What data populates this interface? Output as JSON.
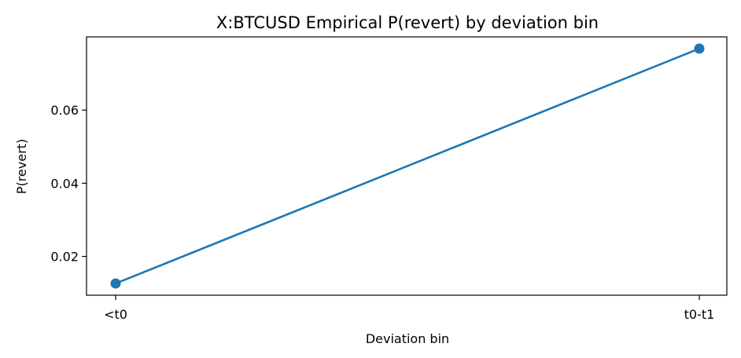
{
  "chart_data": {
    "type": "line",
    "title": "X:BTCUSD Empirical P(revert) by deviation bin",
    "xlabel": "Deviation bin",
    "ylabel": "P(revert)",
    "categories": [
      "<t0",
      "t0-t1"
    ],
    "series": [
      {
        "values": [
          0.0126,
          0.0768
        ],
        "color": "#1f77b4",
        "marker": "circle"
      }
    ],
    "ylim": [
      0.0094,
      0.08
    ],
    "yticks": [
      {
        "value": 0.02,
        "label": "0.02"
      },
      {
        "value": 0.04,
        "label": "0.04"
      },
      {
        "value": 0.06,
        "label": "0.06"
      }
    ],
    "grid": false,
    "legend": "none"
  }
}
